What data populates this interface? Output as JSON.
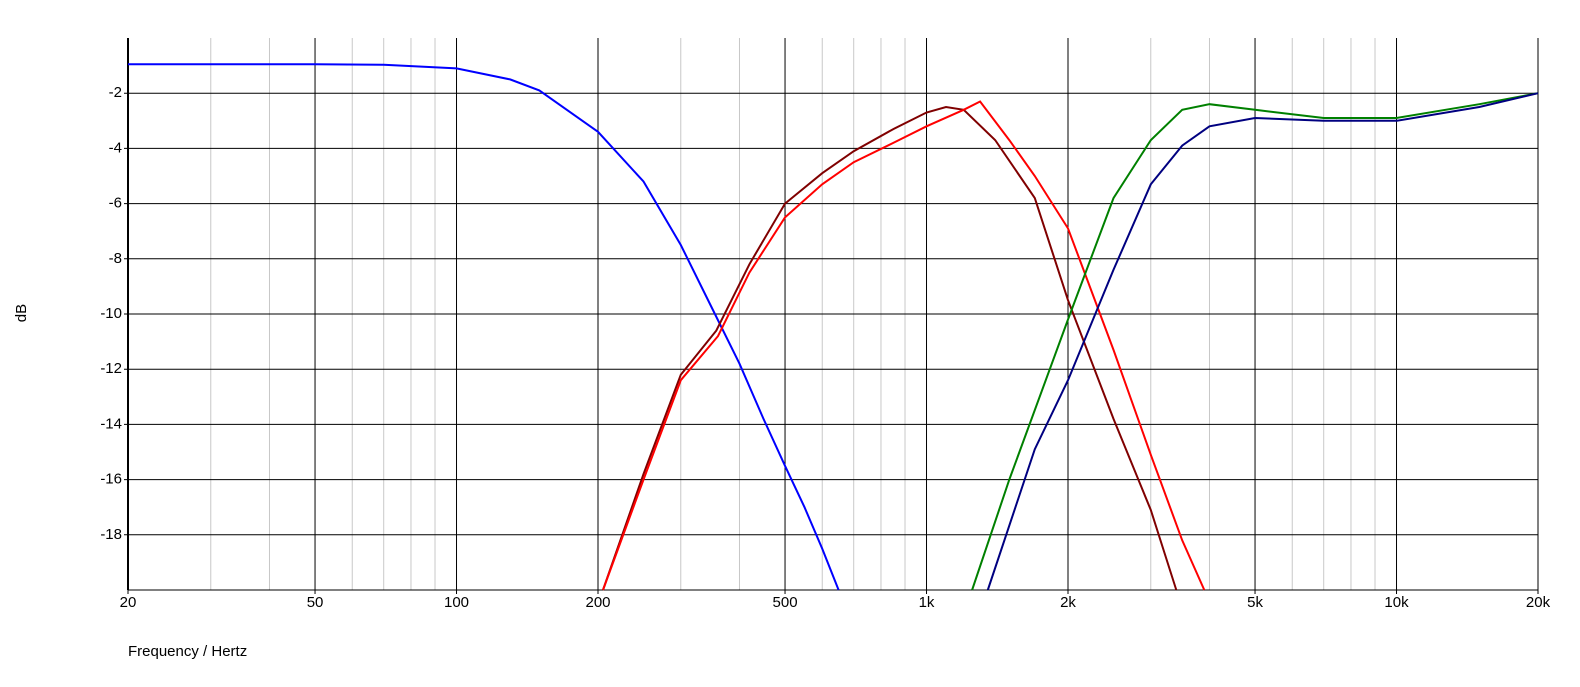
{
  "chart_data": {
    "type": "line",
    "xlabel": "Frequency / Hertz",
    "ylabel": "dB",
    "xscale": "log",
    "grid": true,
    "xlim": [
      20,
      20000
    ],
    "ylim": [
      -20,
      0
    ],
    "xticks": [
      20,
      50,
      100,
      200,
      500,
      {
        "value": 1000,
        "label": "1k"
      },
      {
        "value": 2000,
        "label": "2k"
      },
      {
        "value": 5000,
        "label": "5k"
      },
      {
        "value": 10000,
        "label": "10k"
      },
      {
        "value": 20000,
        "label": "20k"
      }
    ],
    "xminorticks": [
      30,
      40,
      60,
      70,
      80,
      90,
      300,
      400,
      600,
      700,
      800,
      900,
      3000,
      4000,
      6000,
      7000,
      8000,
      9000
    ],
    "yticks": [
      -18,
      -16,
      -14,
      -12,
      -10,
      -8,
      -6,
      -4,
      -2
    ],
    "series": [
      {
        "color": "#0000ff",
        "x": [
          20,
          50,
          70,
          100,
          130,
          150,
          200,
          250,
          300,
          350,
          400,
          450,
          500,
          550,
          600,
          650
        ],
        "values": [
          -0.95,
          -0.95,
          -0.97,
          -1.1,
          -1.5,
          -1.9,
          -3.4,
          -5.2,
          -7.5,
          -9.8,
          -11.8,
          -13.8,
          -15.5,
          -17.0,
          -18.5,
          -20
        ]
      },
      {
        "color": "#800000",
        "x": [
          205,
          250,
          300,
          357,
          420,
          500,
          600,
          700,
          850,
          1000,
          1100,
          1200,
          1400,
          1700,
          2000,
          2500,
          3000,
          3400
        ],
        "values": [
          -20,
          -15.8,
          -12.2,
          -10.6,
          -8.2,
          -6.0,
          -4.9,
          -4.1,
          -3.3,
          -2.7,
          -2.5,
          -2.6,
          -3.7,
          -5.8,
          -9.5,
          -13.8,
          -17.1,
          -20
        ]
      },
      {
        "color": "#ff0000",
        "x": [
          205,
          250,
          300,
          360,
          420,
          500,
          600,
          700,
          850,
          1000,
          1200,
          1300,
          1500,
          1700,
          2000,
          2500,
          3000,
          3500,
          3900
        ],
        "values": [
          -20,
          -16.0,
          -12.4,
          -10.8,
          -8.5,
          -6.5,
          -5.3,
          -4.5,
          -3.8,
          -3.2,
          -2.6,
          -2.3,
          -3.7,
          -5.0,
          -6.9,
          -11.3,
          -15.1,
          -18.2,
          -20
        ]
      },
      {
        "color": "#008000",
        "x": [
          1250,
          1500,
          2000,
          2500,
          3000,
          3500,
          4000,
          5000,
          7000,
          10000,
          15000,
          20000
        ],
        "values": [
          -20,
          -16.0,
          -10.2,
          -5.8,
          -3.7,
          -2.6,
          -2.4,
          -2.6,
          -2.9,
          -2.9,
          -2.4,
          -2.0
        ]
      },
      {
        "color": "#000080",
        "x": [
          1350,
          1700,
          2000,
          2500,
          3000,
          3500,
          4000,
          5000,
          7000,
          10000,
          15000,
          20000
        ],
        "values": [
          -20,
          -14.9,
          -12.4,
          -8.4,
          -5.3,
          -3.9,
          -3.2,
          -2.9,
          -3.0,
          -3.0,
          -2.5,
          -2.0
        ]
      }
    ]
  }
}
